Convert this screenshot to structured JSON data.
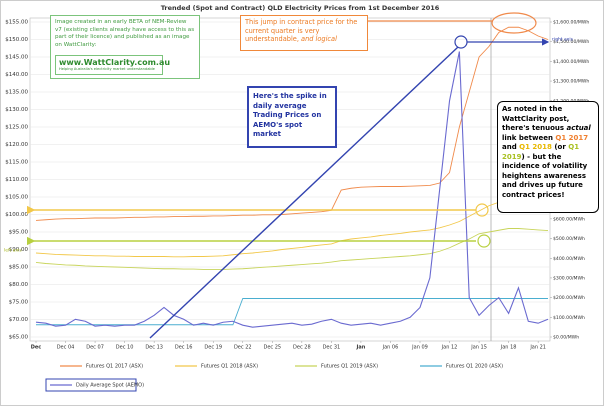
{
  "chart_data": {
    "type": "line",
    "title": "Trended (Spot and Contract) QLD Electricity Prices from 1st December 2016",
    "categories": [
      "Dec",
      null,
      null,
      "Dec 04",
      null,
      null,
      "Dec 07",
      null,
      null,
      "Dec 10",
      null,
      null,
      "Dec 13",
      null,
      null,
      "Dec 16",
      null,
      null,
      "Dec 19",
      null,
      null,
      "Dec 22",
      null,
      null,
      "Dec 25",
      null,
      null,
      "Dec 28",
      null,
      null,
      "Dec 31",
      null,
      null,
      "Jan",
      null,
      null,
      "Jan 06",
      null,
      null,
      "Jan 09",
      null,
      null,
      "Jan 12",
      null,
      null,
      "Jan 15",
      null,
      null,
      "Jan 18",
      null,
      null,
      "Jan 21",
      null
    ],
    "series": [
      {
        "name": "Futures Q1 2017 (ASX)",
        "color": "#f08a4b",
        "values": [
          98.3,
          98.5,
          98.7,
          98.8,
          98.8,
          98.9,
          99,
          99,
          99,
          99.1,
          99.2,
          99.2,
          99.3,
          99.3,
          99.4,
          99.4,
          99.5,
          99.5,
          99.6,
          99.6,
          99.7,
          99.8,
          99.8,
          99.9,
          99.9,
          100,
          100.2,
          100.4,
          100.6,
          100.8,
          101.2,
          107,
          107.5,
          107.8,
          107.9,
          108,
          108,
          108,
          108.1,
          108.2,
          108.3,
          109,
          112,
          125,
          135,
          145,
          148,
          152,
          153.5,
          153.5,
          152.5,
          151,
          150
        ]
      },
      {
        "name": "Futures Q1 2018 (ASX)",
        "color": "#f2c84a",
        "values": [
          89,
          88.8,
          88.6,
          88.5,
          88.4,
          88.3,
          88.2,
          88.2,
          88.1,
          88.1,
          88,
          88,
          88,
          88,
          87.9,
          87.9,
          88,
          88,
          88.1,
          88.2,
          88.5,
          88.8,
          89,
          89.3,
          89.6,
          90,
          90.3,
          90.6,
          91,
          91.3,
          91.6,
          92.5,
          93,
          93.3,
          93.6,
          94,
          94.3,
          94.6,
          95,
          95.3,
          95.6,
          96.2,
          97,
          98,
          99.5,
          101,
          102.5,
          103.5,
          104,
          103.5,
          103.3,
          103.2,
          103
        ]
      },
      {
        "name": "Futures Q1 2019 (ASX)",
        "color": "#c8d45a",
        "values": [
          86.3,
          86,
          85.8,
          85.6,
          85.5,
          85.3,
          85.2,
          85.1,
          85,
          84.9,
          84.8,
          84.7,
          84.6,
          84.5,
          84.5,
          84.4,
          84.4,
          84.3,
          84.3,
          84.3,
          84.4,
          84.5,
          84.7,
          84.9,
          85.1,
          85.3,
          85.5,
          85.7,
          85.9,
          86.1,
          86.4,
          86.8,
          87,
          87.2,
          87.4,
          87.6,
          87.8,
          88,
          88.2,
          88.5,
          88.8,
          89.5,
          90.5,
          91.8,
          93,
          94.5,
          95,
          95.5,
          96,
          96,
          95.8,
          95.6,
          95.4
        ]
      },
      {
        "name": "Futures Q1 2020 (ASX)",
        "color": "#4aaed0",
        "values": [
          68.5,
          68.5,
          68.5,
          68.5,
          68.5,
          68.5,
          68.5,
          68.5,
          68.5,
          68.5,
          68.5,
          68.5,
          68.5,
          68.5,
          68.5,
          68.5,
          68.5,
          68.5,
          68.5,
          68.5,
          68.5,
          76,
          76,
          76,
          76,
          76,
          76,
          76,
          76,
          76,
          76,
          76,
          76,
          76,
          76,
          76,
          76,
          76,
          76,
          76,
          76,
          76,
          76,
          76,
          76,
          76,
          76,
          76,
          76,
          76,
          76,
          76,
          76
        ]
      },
      {
        "name": "Daily Average Spot (AEMO)",
        "color": "#6a6ad0",
        "axis": "y2",
        "values": [
          75,
          70,
          55,
          60,
          90,
          80,
          55,
          60,
          55,
          60,
          60,
          80,
          110,
          150,
          110,
          90,
          60,
          70,
          60,
          75,
          80,
          60,
          50,
          55,
          60,
          65,
          70,
          60,
          65,
          80,
          90,
          70,
          60,
          65,
          70,
          60,
          70,
          80,
          100,
          150,
          300,
          750,
          1200,
          1450,
          200,
          110,
          160,
          200,
          120,
          250,
          80,
          70,
          90
        ]
      }
    ],
    "ylim": [
      65,
      155
    ],
    "yticks": [
      {
        "value": 65,
        "label": "$65.00"
      },
      {
        "value": 70,
        "label": "$70.00"
      },
      {
        "value": 75,
        "label": "$75.00"
      },
      {
        "value": 80,
        "label": "$80.00"
      },
      {
        "value": 85,
        "label": "$85.00"
      },
      {
        "value": 90,
        "label": "$90.00"
      },
      {
        "value": 95,
        "label": "$95.00"
      },
      {
        "value": 100,
        "label": "$100.00"
      },
      {
        "value": 105,
        "label": "$105.00"
      },
      {
        "value": 110,
        "label": "$110.00"
      },
      {
        "value": 115,
        "label": "$115.00"
      },
      {
        "value": 120,
        "label": "$120.00"
      },
      {
        "value": 125,
        "label": "$125.00"
      },
      {
        "value": 130,
        "label": "$130.00"
      },
      {
        "value": 135,
        "label": "$135.00"
      },
      {
        "value": 140,
        "label": "$140.00"
      },
      {
        "value": 145,
        "label": "$145.00"
      },
      {
        "value": 150,
        "label": "$150.00"
      },
      {
        "value": 155,
        "label": "$155.00"
      }
    ],
    "y2lim": [
      0,
      1600
    ],
    "y2ticks": [
      {
        "value": 0,
        "label": "$0.00/MWh"
      },
      {
        "value": 100,
        "label": "$100.00/MWh"
      },
      {
        "value": 200,
        "label": "$200.00/MWh"
      },
      {
        "value": 300,
        "label": "$300.00/MWh"
      },
      {
        "value": 400,
        "label": "$400.00/MWh"
      },
      {
        "value": 500,
        "label": "$500.00/MWh"
      },
      {
        "value": 600,
        "label": "$600.00/MWh"
      },
      {
        "value": 700,
        "label": "$700.00/MWh"
      },
      {
        "value": 800,
        "label": "$800.00/MWh"
      },
      {
        "value": 900,
        "label": "$900.00/MWh"
      },
      {
        "value": 1000,
        "label": "$1,000.00/MWh"
      },
      {
        "value": 1100,
        "label": "$1,100.00/MWh"
      },
      {
        "value": 1200,
        "label": "$1,200.00/MWh"
      },
      {
        "value": 1300,
        "label": "$1,300.00/MWh"
      },
      {
        "value": 1400,
        "label": "$1,400.00/MWh"
      },
      {
        "value": 1500,
        "label": "$1,500.00/MWh"
      },
      {
        "value": 1600,
        "label": "$1,600.00/MWh"
      }
    ],
    "grid": true,
    "annotations": {
      "beta_note": "Image created in an early BETA of NEM-Review v7 (existing clients already have access to this as part of their licence) and published as an image on WattClarity:",
      "logo": "www.WattClarity.com.au",
      "logo_tagline": "Helping Australia's electricity market understandable",
      "contract_note": [
        "This jump in contract price for the current quarter is very understandable, ",
        "and logical"
      ],
      "spike_note": "Here's the spike in daily average Trading Prices on AEMO's spot market",
      "link_note": [
        "As noted in the WattClarity post, there's tenuous ",
        "actual",
        " link between ",
        "Q1 2017",
        " and ",
        "Q1 2018",
        " (or ",
        "Q1 2019",
        ") - but the incidence of volatility heightens awareness and drives up future contract prices!"
      ],
      "right_axis": "right axis",
      "left_axis": "left axis"
    }
  }
}
